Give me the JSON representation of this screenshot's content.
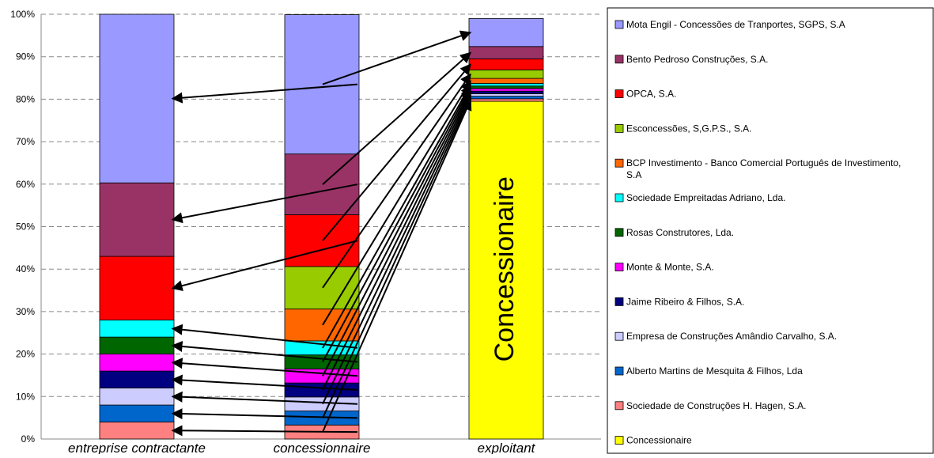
{
  "chart_data": {
    "type": "bar",
    "stacked": true,
    "categories": [
      "entreprise contractante",
      "concessionnaire",
      "exploitant"
    ],
    "ylim": [
      0,
      100
    ],
    "yticks": [
      "0%",
      "10%",
      "20%",
      "30%",
      "40%",
      "50%",
      "60%",
      "70%",
      "80%",
      "90%",
      "100%"
    ],
    "grid": true,
    "legend_position": "right",
    "bar_inner_label": "Concessionaire",
    "series": [
      {
        "name": "Concessionaire",
        "color": "#FFFF00",
        "values": [
          0,
          0,
          79.5
        ]
      },
      {
        "name": "Sociedade de Construções H. Hagen, S.A.",
        "color": "#FF8080",
        "values": [
          4,
          3.3,
          0.6
        ]
      },
      {
        "name": "Alberto Martins de Mesquita & Filhos, Lda",
        "color": "#0066CC",
        "values": [
          4,
          3.3,
          0.6
        ]
      },
      {
        "name": "Empresa de Construções Amândio Carvalho, S.A.",
        "color": "#CCCCFF",
        "values": [
          4,
          3.3,
          0.6
        ]
      },
      {
        "name": "Jaime Ribeiro & Filhos, S.A.",
        "color": "#000080",
        "values": [
          4,
          3.3,
          0.6
        ]
      },
      {
        "name": "Monte & Monte, S.A.",
        "color": "#FF00FF",
        "values": [
          4,
          3.3,
          0.6
        ]
      },
      {
        "name": "Rosas Construtores, Lda.",
        "color": "#006600",
        "values": [
          4,
          3.3,
          0.6
        ]
      },
      {
        "name": "Sociedade Empreitadas Adriano, Lda.",
        "color": "#00FFFF",
        "values": [
          4,
          3.3,
          0.6
        ]
      },
      {
        "name": "BCP Investimento - Banco Comercial Português de Investimento, S.A",
        "color": "#FF6600",
        "values": [
          0,
          7.5,
          1.2
        ]
      },
      {
        "name": "Esconcessões, S,G.P.S., S.A.",
        "color": "#99CC00",
        "values": [
          0,
          10,
          2
        ]
      },
      {
        "name": "OPCA, S.A.",
        "color": "#FF0000",
        "values": [
          15,
          12.2,
          2.6
        ]
      },
      {
        "name": "Bento Pedroso Construções, S.A.",
        "color": "#993366",
        "values": [
          17.3,
          14.3,
          2.9
        ]
      },
      {
        "name": "Mota Engil - Concessões de Tranportes, SGPS, S.A",
        "color": "#9999FF",
        "values": [
          39.7,
          32.8,
          6.6
        ]
      }
    ]
  }
}
